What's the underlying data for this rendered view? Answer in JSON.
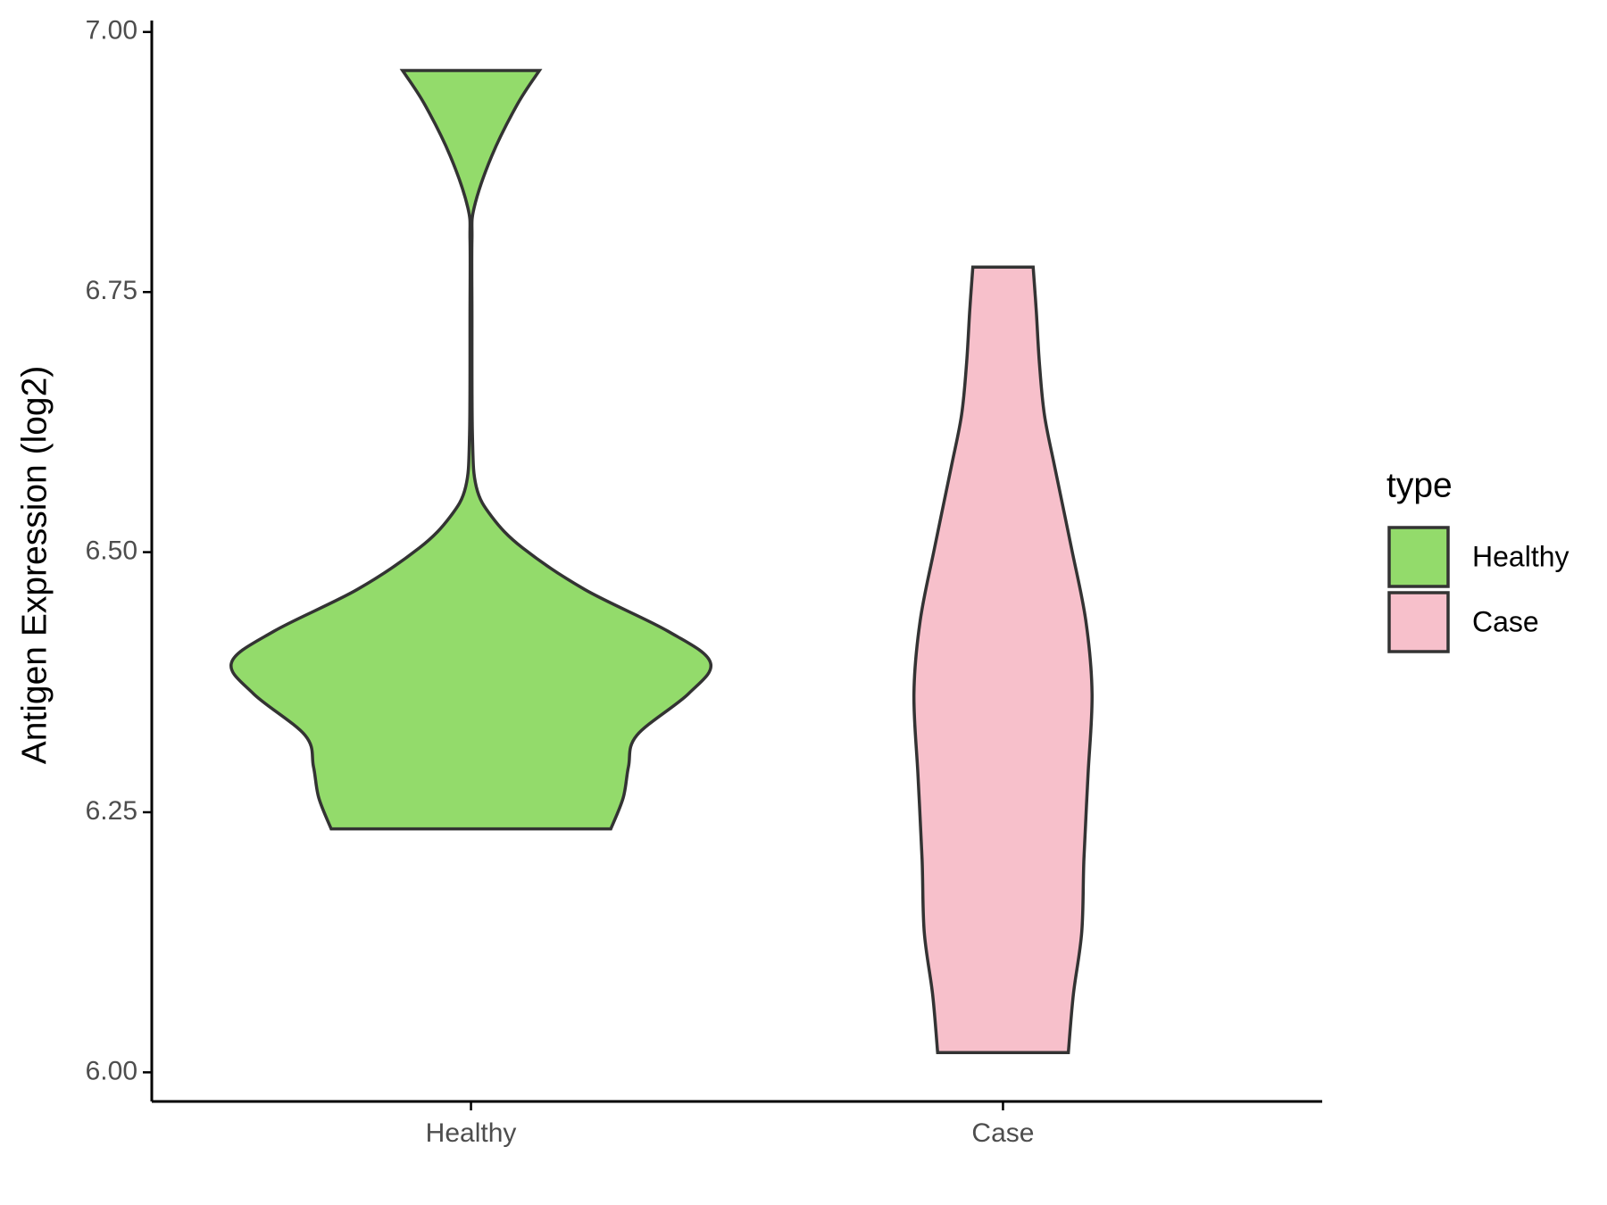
{
  "chart_data": {
    "type": "violin",
    "y_label": "Antigen Expression (log2)",
    "categories": [
      "Healthy",
      "Case"
    ],
    "legend_title": "type",
    "series": [
      {
        "name": "Healthy",
        "color": "#93db6b",
        "y": [
          6.963,
          6.931,
          6.881,
          6.831,
          6.8,
          6.732,
          6.613,
          6.563,
          6.534,
          6.504,
          6.464,
          6.424,
          6.394,
          6.364,
          6.324,
          6.294,
          6.264,
          6.234
        ],
        "width": [
          0.286,
          0.195,
          0.087,
          0.013,
          0.004,
          0.004,
          0.006,
          0.022,
          0.087,
          0.216,
          0.476,
          0.823,
          1,
          0.909,
          0.693,
          0.658,
          0.636,
          0.584
        ]
      },
      {
        "name": "Case",
        "color": "#f7c0cb",
        "y": [
          6.774,
          6.732,
          6.682,
          6.632,
          6.582,
          6.504,
          6.434,
          6.364,
          6.285,
          6.205,
          6.135,
          6.075,
          6.019
        ],
        "width": [
          0.126,
          0.139,
          0.152,
          0.173,
          0.216,
          0.286,
          0.346,
          0.372,
          0.355,
          0.338,
          0.329,
          0.294,
          0.273
        ]
      }
    ],
    "ylim": [
      5.972,
      7.011
    ],
    "yticks": [
      {
        "value": 6,
        "label": "6.00"
      },
      {
        "value": 6.25,
        "label": "6.25"
      },
      {
        "value": 6.5,
        "label": "6.50"
      },
      {
        "value": 6.75,
        "label": "6.75"
      },
      {
        "value": 7,
        "label": "7.00"
      }
    ],
    "grid": false,
    "legend": "right"
  }
}
